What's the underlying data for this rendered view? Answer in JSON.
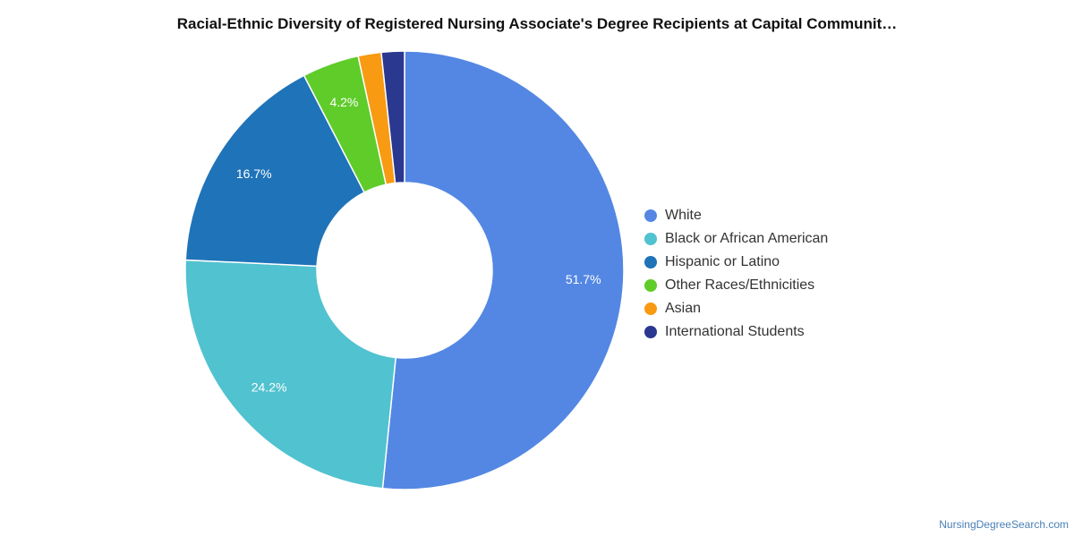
{
  "chart_data": {
    "type": "donut",
    "title": "Racial-Ethnic Diversity of Registered Nursing Associate's Degree Recipients at Capital Communit…",
    "unit": "%",
    "start_angle_deg": 0,
    "direction": "clockwise",
    "legend_position": "right",
    "slices": [
      {
        "name": "White",
        "value": 51.7,
        "label": "51.7%",
        "color": "#5387e3"
      },
      {
        "name": "Black or African American",
        "value": 24.2,
        "label": "24.2%",
        "color": "#51c2cf"
      },
      {
        "name": "Hispanic or Latino",
        "value": 16.7,
        "label": "16.7%",
        "color": "#1f73b8"
      },
      {
        "name": "Other Races/Ethnicities",
        "value": 4.2,
        "label": "4.2%",
        "color": "#5fcc2a"
      },
      {
        "name": "Asian",
        "value": 1.7,
        "label": "",
        "color": "#f89a12"
      },
      {
        "name": "International Students",
        "value": 1.7,
        "label": "",
        "color": "#2b3890"
      }
    ]
  },
  "footer": {
    "credit": "NursingDegreeSearch.com"
  }
}
